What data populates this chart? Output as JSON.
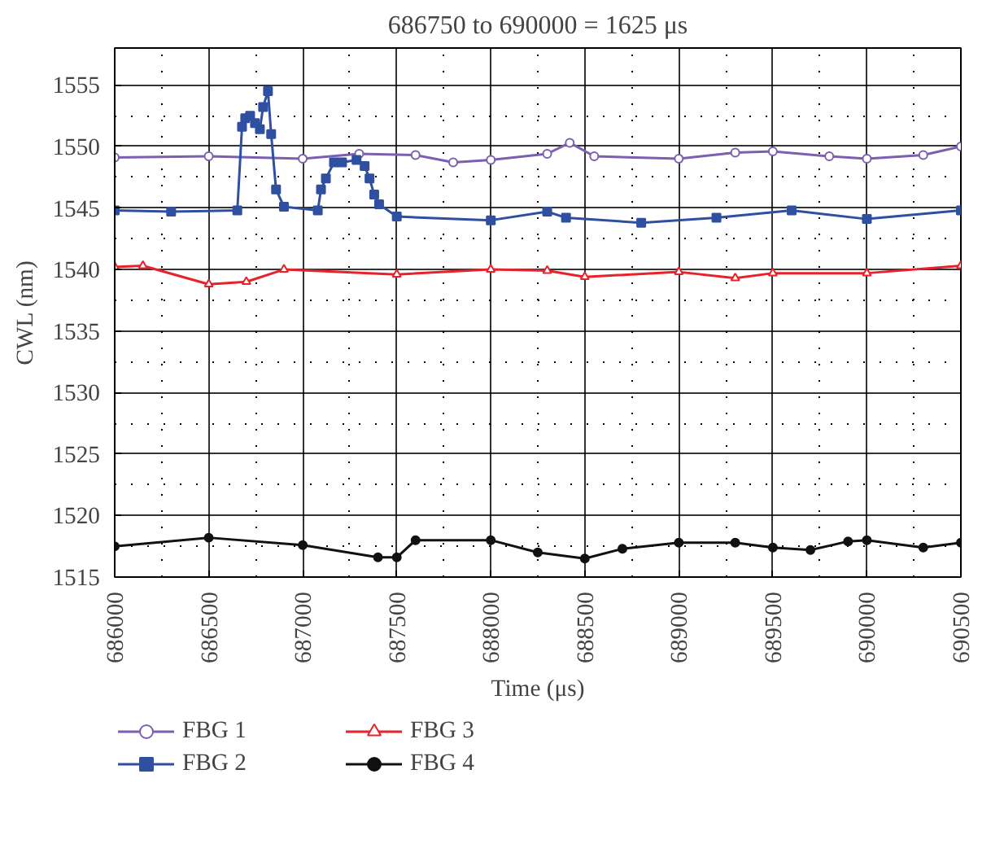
{
  "chart_data": {
    "type": "line",
    "title": "686750 to 690000 = 1625 μs",
    "xlabel": "Time (μs)",
    "ylabel": "CWL (nm)",
    "xlim": [
      686000,
      690500
    ],
    "xticks": [
      686000,
      686500,
      687000,
      687500,
      688000,
      688500,
      689000,
      689500,
      690000,
      690500
    ],
    "ylim": [
      1515,
      1558
    ],
    "yticks": [
      1515,
      1520,
      1525,
      1530,
      1535,
      1540,
      1545,
      1550,
      1555
    ],
    "grid": true,
    "legend": "bottom",
    "line_style": "solid",
    "series": [
      {
        "name": "FBG 1",
        "color": "#7b5fb0",
        "marker": "circle",
        "x": [
          686000,
          686500,
          687000,
          687300,
          687600,
          687800,
          688000,
          688300,
          688420,
          688550,
          689000,
          689300,
          689500,
          689800,
          690000,
          690300,
          690500
        ],
        "values": [
          1549.1,
          1549.2,
          1549.0,
          1549.4,
          1549.3,
          1548.7,
          1548.9,
          1549.4,
          1550.3,
          1549.2,
          1549.0,
          1549.5,
          1549.6,
          1549.2,
          1549.0,
          1549.3,
          1550.0
        ]
      },
      {
        "name": "FBG 2",
        "color": "#2f4fa0",
        "marker": "square",
        "x": [
          686000,
          686300,
          686652,
          686677,
          686694,
          686720,
          686746,
          686772,
          686789,
          686815,
          686832,
          686858,
          686900,
          687080,
          687097,
          687123,
          687166,
          687209,
          687286,
          687329,
          687355,
          687380,
          687406,
          687500,
          688000,
          688300,
          688400,
          688800,
          689200,
          689600,
          690000,
          690500
        ],
        "values": [
          1544.8,
          1544.7,
          1544.8,
          1551.6,
          1552.3,
          1552.5,
          1551.9,
          1551.4,
          1553.2,
          1554.5,
          1551.0,
          1546.5,
          1545.1,
          1544.8,
          1546.5,
          1547.4,
          1548.7,
          1548.7,
          1548.9,
          1548.4,
          1547.4,
          1546.1,
          1545.3,
          1544.3,
          1544.0,
          1544.7,
          1544.2,
          1543.8,
          1544.2,
          1544.8,
          1544.1,
          1544.8
        ]
      },
      {
        "name": "FBG 3",
        "color": "#e8212a",
        "marker": "triangle",
        "x": [
          686000,
          686150,
          686500,
          686700,
          686900,
          687500,
          688000,
          688300,
          688500,
          689000,
          689300,
          689500,
          690000,
          690500
        ],
        "values": [
          1540.2,
          1540.3,
          1538.8,
          1539.0,
          1540.0,
          1539.6,
          1540.0,
          1539.9,
          1539.4,
          1539.8,
          1539.3,
          1539.7,
          1539.7,
          1540.3
        ]
      },
      {
        "name": "FBG 4",
        "color": "#111111",
        "marker": "circle",
        "x": [
          686000,
          686500,
          687000,
          687400,
          687500,
          687600,
          688000,
          688250,
          688500,
          688700,
          689000,
          689300,
          689500,
          689700,
          689900,
          690000,
          690300,
          690500
        ],
        "values": [
          1517.5,
          1518.2,
          1517.6,
          1516.6,
          1516.6,
          1518.0,
          1518.0,
          1517.0,
          1516.5,
          1517.3,
          1517.8,
          1517.8,
          1517.4,
          1517.2,
          1517.9,
          1518.0,
          1517.4,
          1517.8
        ]
      }
    ]
  }
}
